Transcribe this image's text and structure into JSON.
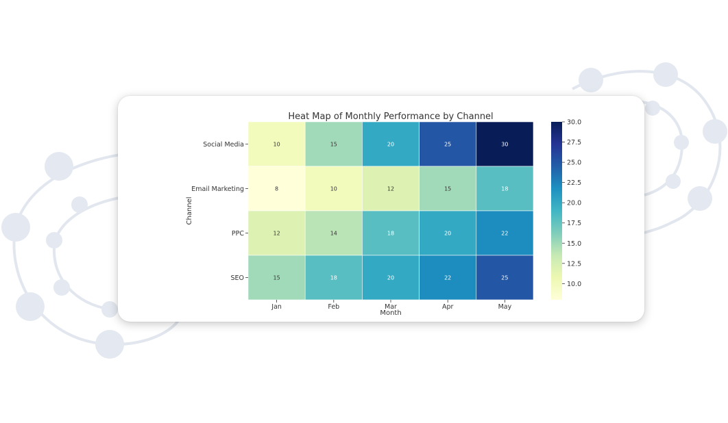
{
  "chart_data": {
    "type": "heatmap",
    "title": "Heat Map of Monthly Performance by Channel",
    "xlabel": "Month",
    "ylabel": "Channel",
    "x_categories": [
      "Jan",
      "Feb",
      "Mar",
      "Apr",
      "May"
    ],
    "y_categories": [
      "Social Media",
      "Email Marketing",
      "PPC",
      "SEO"
    ],
    "values": [
      [
        10,
        15,
        20,
        25,
        30
      ],
      [
        8,
        10,
        12,
        15,
        18
      ],
      [
        12,
        14,
        18,
        20,
        22
      ],
      [
        15,
        18,
        20,
        22,
        25
      ]
    ],
    "colorbar": {
      "min": 8,
      "max": 30,
      "ticks": [
        "10.0",
        "12.5",
        "15.0",
        "17.5",
        "20.0",
        "22.5",
        "25.0",
        "27.5",
        "30.0"
      ],
      "colormap": "YlGnBu"
    }
  }
}
